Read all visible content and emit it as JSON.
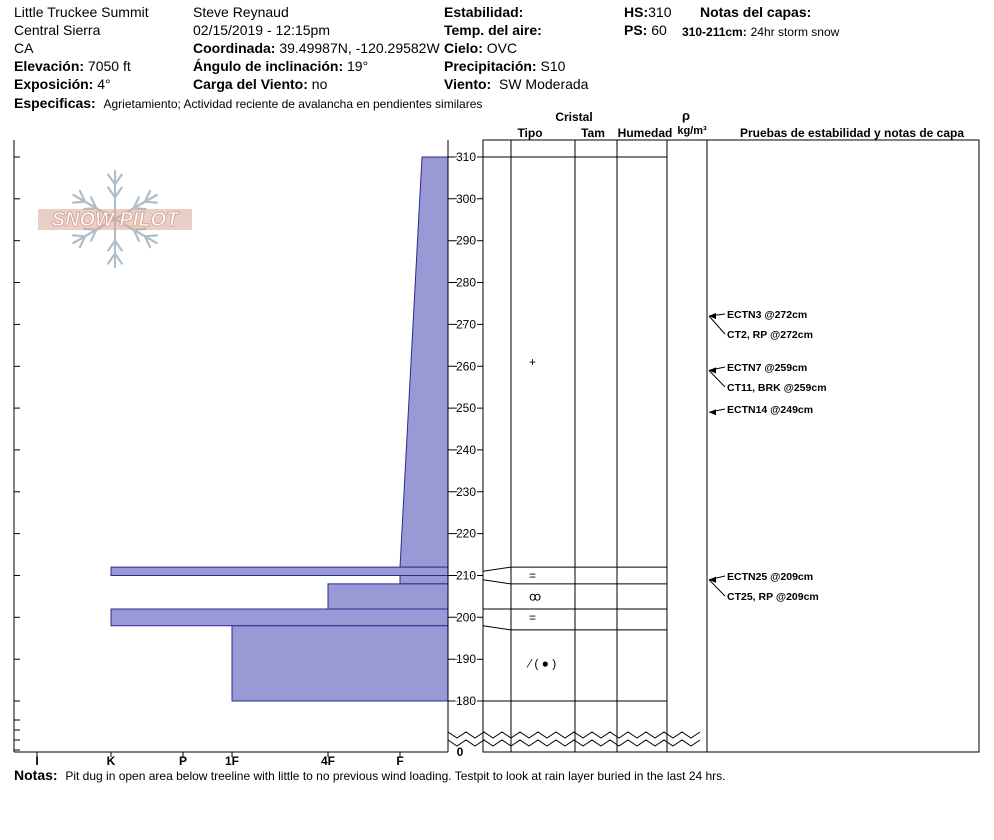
{
  "header": {
    "location": "Little Truckee Summit",
    "range": "Central Sierra",
    "state": "CA",
    "elevation": {
      "label": "Elevación:",
      "value": "7050 ft"
    },
    "aspect": {
      "label": "Exposición:",
      "value": "4°"
    },
    "observer": "Steve Reynaud",
    "datetime": "02/15/2019 - 12:15pm",
    "coords": {
      "label": "Coordinada:",
      "value": "39.49987N, -120.29582W"
    },
    "incline": {
      "label": "Ángulo de inclinación:",
      "value": "19°"
    },
    "windload": {
      "label": "Carga del Viento:",
      "value": "no"
    },
    "stability": {
      "label": "Estabilidad:",
      "value": ""
    },
    "airtemp": {
      "label": "Temp. del aire:",
      "value": ""
    },
    "sky": {
      "label": "Cielo:",
      "value": "OVC"
    },
    "precip": {
      "label": "Precipitación:",
      "value": "S10"
    },
    "wind": {
      "label": "Viento:",
      "value": "SW Moderada"
    },
    "hs": {
      "label": "HS:",
      "value": "310"
    },
    "ps": {
      "label": "PS:",
      "value": "60"
    },
    "layer_notes_label": "Notas del capas:",
    "layer_note": {
      "range": "310-211cm:",
      "text": "24hr storm snow"
    },
    "specifics": {
      "label": "Especificas:",
      "value": "Agrietamiento;  Actividad reciente de avalancha en pendientes similares"
    }
  },
  "notes": {
    "label": "Notas:",
    "value": "Pit dug in open area below treeline with little to no previous wind loading. Testpit to look at rain layer buried in the last 24 hrs."
  },
  "logo_text": "SNOW PILOT",
  "columns": {
    "cristal": "Cristal",
    "tipo": "Tipo",
    "tam": "Tam",
    "humedad": "Humedad",
    "rho": "ρ",
    "density_unit": "kg/m³",
    "tests": "Pruebas de estabilidad y notas de capa"
  },
  "colors": {
    "hardness_fill": "#9999d6",
    "hardness_stroke": "#2b2b8c",
    "grid": "#000000",
    "logo": "#d9a898",
    "flake": "#b0bec8"
  },
  "chart_data": {
    "type": "snow-profile",
    "hardness_scale": [
      "I",
      "K",
      "P",
      "1F",
      "4F",
      "F"
    ],
    "depth_ticks": [
      180,
      190,
      200,
      210,
      220,
      230,
      240,
      250,
      260,
      270,
      280,
      290,
      300,
      310
    ],
    "depth_zero_label": "0",
    "hs": 310,
    "layers": [
      {
        "top": 310,
        "bottom": 212,
        "hardness_top": "F",
        "hardness_bottom": "4F"
      },
      {
        "top": 212,
        "bottom": 210,
        "hardness": "K"
      },
      {
        "top": 210,
        "bottom": 208,
        "hardness": "F"
      },
      {
        "top": 208,
        "bottom": 202,
        "hardness": "4F"
      },
      {
        "top": 202,
        "bottom": 198,
        "hardness": "K"
      },
      {
        "top": 198,
        "bottom": 180,
        "hardness": "1F"
      }
    ],
    "layer_lines": [
      212,
      208,
      202,
      197
    ],
    "grain_symbols": [
      {
        "depth": 261,
        "symbol": "+"
      },
      {
        "depth": 210,
        "symbol": "="
      },
      {
        "depth": 205,
        "symbol": "ꝏ"
      },
      {
        "depth": 200,
        "symbol": "="
      },
      {
        "depth": 189,
        "symbol": "⁄ ( ● )"
      }
    ],
    "tests": [
      {
        "depth": 272,
        "label": "ECTN3 @272cm"
      },
      {
        "depth": 272,
        "label": "CT2, RP @272cm"
      },
      {
        "depth": 259,
        "label": "ECTN7 @259cm"
      },
      {
        "depth": 259,
        "label": "CT11, BRK @259cm"
      },
      {
        "depth": 249,
        "label": "ECTN14 @249cm"
      },
      {
        "depth": 209,
        "label": "ECTN25 @209cm"
      },
      {
        "depth": 209,
        "label": "CT25, RP @209cm"
      }
    ]
  }
}
